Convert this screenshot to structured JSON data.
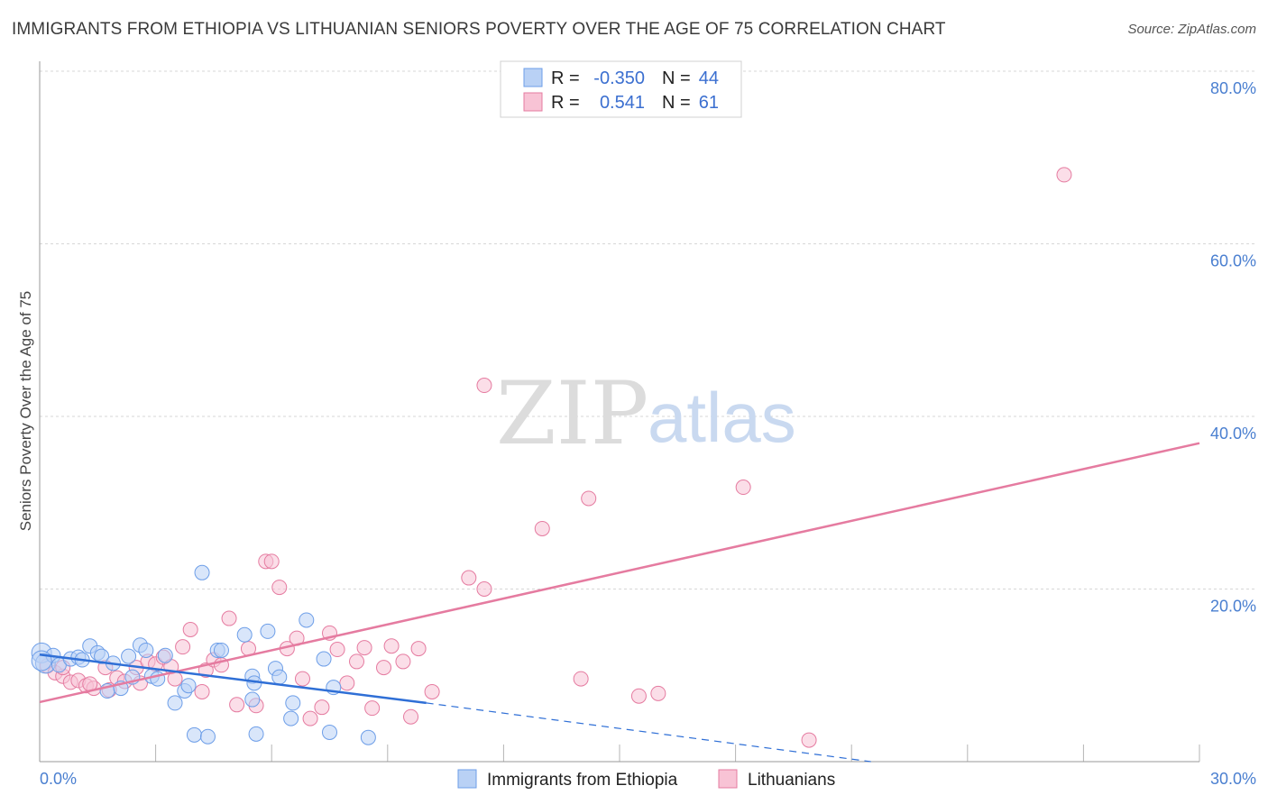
{
  "header": {
    "title": "IMMIGRANTS FROM ETHIOPIA VS LITHUANIAN SENIORS POVERTY OVER THE AGE OF 75 CORRELATION CHART",
    "source": "Source: ZipAtlas.com"
  },
  "colors": {
    "ethiopia": "#6d9ee8",
    "ethiopia_fill": "#b9d1f5",
    "lithuania": "#e57ba0",
    "lithuania_fill": "#f8c3d5",
    "tick": "#4a7fd0",
    "grid": "#d7d7d7"
  },
  "legend": {
    "rows": [
      {
        "r_label": "R =",
        "r_value": "-0.350",
        "n_label": "N =",
        "n_value": "44"
      },
      {
        "r_label": "R =",
        "r_value": "0.541",
        "n_label": "N =",
        "n_value": "61"
      }
    ]
  },
  "watermark": {
    "zip": "ZIP",
    "atlas": "atlas"
  },
  "chart_data": {
    "type": "scatter",
    "title": "IMMIGRANTS FROM ETHIOPIA VS LITHUANIAN SENIORS POVERTY OVER THE AGE OF 75 CORRELATION CHART",
    "xlabel": "",
    "ylabel": "Seniors Poverty Over the Age of 75",
    "xlim": [
      0,
      30
    ],
    "ylim": [
      0,
      80
    ],
    "x_tick_labels": [
      "0.0%",
      "30.0%"
    ],
    "y_ticks": [
      20,
      40,
      60,
      80
    ],
    "y_tick_labels": [
      "20.0%",
      "40.0%",
      "60.0%",
      "80.0%"
    ],
    "legend_position": "top-center",
    "series": [
      {
        "name": "Immigrants from Ethiopia",
        "r": -0.35,
        "n": 44,
        "trend": {
          "x0": 0,
          "y0": 12.4,
          "x1": 10.0,
          "y1": 6.8,
          "dashed_to_x": 21.5,
          "dashed_to_y": 0.0
        },
        "points": [
          [
            0.05,
            12.6
          ],
          [
            0.15,
            11.4
          ],
          [
            0.35,
            12.3
          ],
          [
            0.5,
            11.2
          ],
          [
            0.8,
            11.9
          ],
          [
            1.0,
            12.1
          ],
          [
            1.1,
            11.8
          ],
          [
            1.3,
            13.4
          ],
          [
            1.5,
            12.6
          ],
          [
            1.6,
            12.2
          ],
          [
            1.75,
            8.2
          ],
          [
            1.9,
            11.4
          ],
          [
            2.1,
            8.5
          ],
          [
            2.3,
            12.2
          ],
          [
            2.4,
            9.8
          ],
          [
            2.6,
            13.5
          ],
          [
            2.75,
            12.9
          ],
          [
            2.9,
            9.9
          ],
          [
            3.05,
            9.6
          ],
          [
            3.25,
            12.3
          ],
          [
            3.5,
            6.8
          ],
          [
            3.75,
            8.2
          ],
          [
            3.85,
            8.8
          ],
          [
            4.0,
            3.1
          ],
          [
            4.2,
            21.9
          ],
          [
            4.35,
            2.9
          ],
          [
            4.6,
            12.9
          ],
          [
            4.7,
            12.9
          ],
          [
            5.3,
            14.7
          ],
          [
            5.5,
            7.2
          ],
          [
            5.5,
            9.9
          ],
          [
            5.55,
            9.1
          ],
          [
            5.6,
            3.2
          ],
          [
            5.9,
            15.1
          ],
          [
            6.1,
            10.8
          ],
          [
            6.2,
            9.8
          ],
          [
            6.5,
            5.0
          ],
          [
            6.55,
            6.8
          ],
          [
            6.9,
            16.4
          ],
          [
            7.35,
            11.9
          ],
          [
            7.5,
            3.4
          ],
          [
            7.6,
            8.6
          ],
          [
            8.5,
            2.8
          ],
          [
            0.05,
            11.7
          ]
        ]
      },
      {
        "name": "Lithuanians",
        "r": 0.541,
        "n": 61,
        "trend": {
          "x0": 0,
          "y0": 6.9,
          "x1": 30.0,
          "y1": 36.9
        },
        "points": [
          [
            0.2,
            11.1
          ],
          [
            0.4,
            10.3
          ],
          [
            0.6,
            9.9
          ],
          [
            0.8,
            9.2
          ],
          [
            1.0,
            9.4
          ],
          [
            1.2,
            8.8
          ],
          [
            1.4,
            8.5
          ],
          [
            1.7,
            10.9
          ],
          [
            1.8,
            8.3
          ],
          [
            2.0,
            9.7
          ],
          [
            2.2,
            9.3
          ],
          [
            2.5,
            10.9
          ],
          [
            2.6,
            9.1
          ],
          [
            2.8,
            11.6
          ],
          [
            3.0,
            11.3
          ],
          [
            3.2,
            12.1
          ],
          [
            3.4,
            11.0
          ],
          [
            3.5,
            9.6
          ],
          [
            3.7,
            13.3
          ],
          [
            3.9,
            15.3
          ],
          [
            4.2,
            8.1
          ],
          [
            4.3,
            10.6
          ],
          [
            4.5,
            11.8
          ],
          [
            4.7,
            11.2
          ],
          [
            4.9,
            16.6
          ],
          [
            5.1,
            6.6
          ],
          [
            5.4,
            13.1
          ],
          [
            5.6,
            6.5
          ],
          [
            5.85,
            23.2
          ],
          [
            6.0,
            23.2
          ],
          [
            6.2,
            20.2
          ],
          [
            6.4,
            13.1
          ],
          [
            6.65,
            14.3
          ],
          [
            6.8,
            9.6
          ],
          [
            7.0,
            5.0
          ],
          [
            7.3,
            6.3
          ],
          [
            7.5,
            14.9
          ],
          [
            7.7,
            13.0
          ],
          [
            7.95,
            9.1
          ],
          [
            8.2,
            11.6
          ],
          [
            8.4,
            13.2
          ],
          [
            8.6,
            6.2
          ],
          [
            8.9,
            10.9
          ],
          [
            9.1,
            13.4
          ],
          [
            9.4,
            11.6
          ],
          [
            9.6,
            5.2
          ],
          [
            9.8,
            13.1
          ],
          [
            10.15,
            8.1
          ],
          [
            11.1,
            21.3
          ],
          [
            11.5,
            20.0
          ],
          [
            11.5,
            43.6
          ],
          [
            13.0,
            27.0
          ],
          [
            14.0,
            9.6
          ],
          [
            14.2,
            30.5
          ],
          [
            15.5,
            7.6
          ],
          [
            16.0,
            7.9
          ],
          [
            18.2,
            31.8
          ],
          [
            19.9,
            2.5
          ],
          [
            26.5,
            68.0
          ],
          [
            0.6,
            10.9
          ],
          [
            1.3,
            9.0
          ]
        ]
      }
    ]
  },
  "bottom_legend": {
    "items": [
      {
        "label": "Immigrants from Ethiopia"
      },
      {
        "label": "Lithuanians"
      }
    ]
  }
}
